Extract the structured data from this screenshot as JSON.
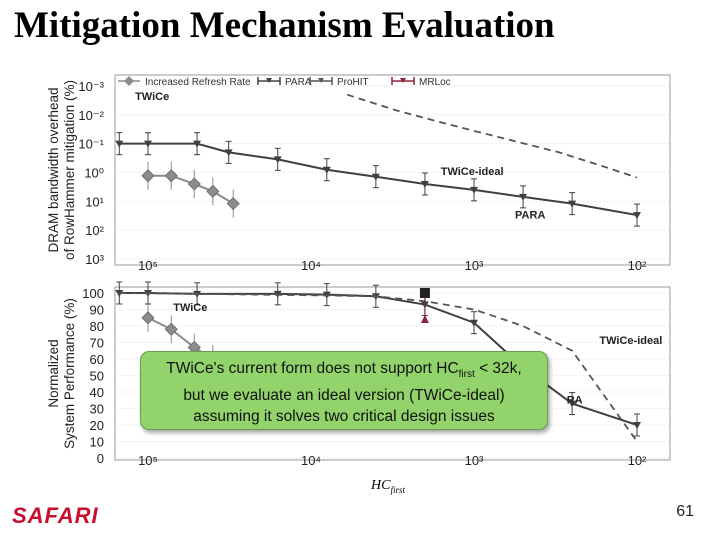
{
  "slide": {
    "title": "Mitigation Mechanism Evaluation",
    "logo": "SAFARI",
    "page_number": "61",
    "callout": {
      "line1_pre": "TWiCe's current form does not support HC",
      "line1_sub": "first",
      "line1_post": " < 32k,",
      "line2": "but we evaluate an ideal version (TWiCe-ideal)",
      "line3": "assuming it solves two critical design issues"
    },
    "xlabel": {
      "main": "HC",
      "sub": "first"
    }
  },
  "colors": {
    "increased_refresh_rate": "#8c8c8c",
    "para": "#404040",
    "prohit": "#555555",
    "mrloc": "#8b2538",
    "twice": "#3a3a3a",
    "callout_bg": "#92d36b",
    "logo": "#c8102e"
  },
  "chart_data": [
    {
      "type": "line",
      "ylabel": [
        "DRAM bandwidth overhead",
        "of RowHammer mitigation (%)"
      ],
      "x_ticks": [
        "10⁵",
        "10⁴",
        "10³",
        "10²"
      ],
      "y_ticks": [
        "10⁻³",
        "10⁻²",
        "10⁻¹",
        "10⁰",
        "10¹",
        "10²",
        "10³"
      ],
      "legend": [
        "Increased Refresh Rate",
        "PARA",
        "ProHIT",
        "MRLoc"
      ],
      "annotations": [
        {
          "text": "TWiCe",
          "x": 120000,
          "y": 0.003
        },
        {
          "text": "TWiCe-ideal",
          "x": 1600,
          "y": 1.2
        },
        {
          "text": "PARA",
          "x": 560,
          "y": 40
        }
      ],
      "series": [
        {
          "name": "Increased Refresh Rate",
          "marker": "diamond",
          "x": [
            100000,
            72000,
            52000,
            40000,
            30000
          ],
          "y": [
            1.3,
            1.3,
            2.5,
            4.5,
            12
          ]
        },
        {
          "name": "PARA",
          "marker": "triangle",
          "x": [
            150000,
            100000,
            50000,
            32000,
            16000,
            8000,
            4000,
            2000,
            1000,
            500,
            250,
            100
          ],
          "y": [
            0.1,
            0.1,
            0.1,
            0.2,
            0.35,
            0.8,
            1.4,
            2.5,
            4,
            7,
            12,
            30
          ]
        },
        {
          "name": "TWiCe-ideal",
          "style": "dashed",
          "x": [
            6000,
            3000,
            1500,
            700,
            300,
            150,
            100
          ],
          "y": [
            0.002,
            0.007,
            0.02,
            0.06,
            0.2,
            0.7,
            1.5
          ]
        }
      ]
    },
    {
      "type": "line",
      "ylabel": [
        "Normalized",
        "System Performance (%)"
      ],
      "x_ticks": [
        "10⁵",
        "10⁴",
        "10³",
        "10²"
      ],
      "y_ticks": [
        "100",
        "90",
        "80",
        "70",
        "60",
        "50",
        "40",
        "30",
        "20",
        "10",
        "0"
      ],
      "ylim": [
        0,
        100
      ],
      "annotations": [
        {
          "text": "TWiCe",
          "x": 70000,
          "y": 89
        },
        {
          "text": "TWiCe-ideal",
          "x": 170,
          "y": 69
        },
        {
          "text": "RA",
          "x": 270,
          "y": 33
        }
      ],
      "series": [
        {
          "name": "Increased Refresh Rate",
          "marker": "diamond",
          "x": [
            100000,
            72000,
            52000,
            40000
          ],
          "y": [
            85,
            78,
            67,
            60
          ]
        },
        {
          "name": "PARA",
          "marker": "triangle",
          "x": [
            150000,
            100000,
            50000,
            16000,
            8000,
            4000,
            2000,
            1000,
            500,
            250,
            100
          ],
          "y": [
            100,
            100,
            99.5,
            99.5,
            99,
            98,
            93,
            82,
            55,
            33,
            20
          ]
        },
        {
          "name": "TWiCe-ideal",
          "style": "dashed",
          "x": [
            150000,
            50000,
            20000,
            8000,
            4000,
            2000,
            1000,
            500,
            250,
            100
          ],
          "y": [
            100,
            99.5,
            99,
            98.5,
            98,
            95,
            90,
            80,
            65,
            10
          ]
        },
        {
          "name": "MRLoc",
          "marker": "square",
          "x": [
            2000
          ],
          "y": [
            100
          ]
        }
      ]
    }
  ]
}
